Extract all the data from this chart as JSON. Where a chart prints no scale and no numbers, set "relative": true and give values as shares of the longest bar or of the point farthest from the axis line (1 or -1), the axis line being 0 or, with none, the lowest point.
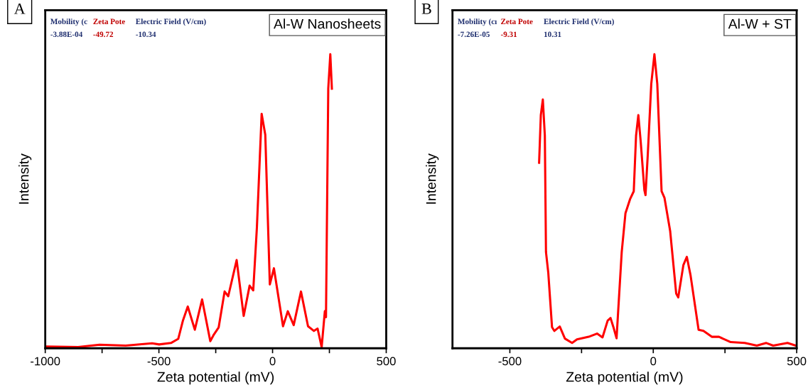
{
  "chart_data": [
    {
      "type": "line",
      "title": "Al-W Nanosheets",
      "xlabel": "Zeta potential (mV)",
      "ylabel": "Intensity",
      "relative": true,
      "grid": false,
      "xlim": [
        -1000,
        500
      ],
      "xticks": [
        -1000,
        {
          "value": -750,
          "label": null
        },
        -500,
        {
          "value": -250,
          "label": null
        },
        0,
        {
          "value": 250,
          "label": null
        },
        500
      ],
      "annotations": [
        "A",
        "Mobility (c",
        "Zeta Pote",
        "Electric Field (V/cm)",
        "-3.88E-04",
        "-49.72",
        "-10.34"
      ],
      "series": [
        {
          "color": "#ff0000",
          "x": [
            -1000,
            -855,
            -761,
            -646,
            -530,
            -499,
            -447,
            -415,
            -394,
            -373,
            -342,
            -310,
            -274,
            -258,
            -237,
            -211,
            -195,
            -158,
            -127,
            -101,
            -85,
            -69,
            -48,
            -32,
            -12,
            6,
            46,
            67,
            93,
            125,
            156,
            182,
            198,
            216,
            230,
            235,
            245,
            254,
            261
          ],
          "values": [
            0.006,
            0.004,
            0.012,
            0.009,
            0.017,
            0.013,
            0.018,
            0.032,
            0.095,
            0.142,
            0.063,
            0.166,
            0.024,
            0.047,
            0.071,
            0.193,
            0.177,
            0.3,
            0.11,
            0.213,
            0.197,
            0.41,
            0.797,
            0.726,
            0.217,
            0.272,
            0.075,
            0.126,
            0.079,
            0.193,
            0.075,
            0.059,
            0.067,
            0.004,
            0.126,
            0.106,
            0.883,
            1.0,
            0.883
          ]
        }
      ]
    },
    {
      "type": "line",
      "title": "Al-W + ST",
      "xlabel": "Zeta potential (mV)",
      "ylabel": "Intensity",
      "relative": true,
      "grid": false,
      "xlim": [
        -700,
        500
      ],
      "xticks": [
        -500,
        {
          "value": -250,
          "label": null
        },
        0,
        {
          "value": 250,
          "label": null
        },
        500
      ],
      "annotations": [
        "B",
        "Mobility (cı",
        "Zeta Pote",
        "Electric Field (V/cm)",
        "-7.26E-05",
        "-9.31",
        "10.31"
      ],
      "series": [
        {
          "color": "#ff0000",
          "x": [
            -398,
            -392,
            -385,
            -378,
            -374,
            -366,
            -353,
            -345,
            -326,
            -308,
            -283,
            -266,
            -225,
            -196,
            -177,
            -159,
            -149,
            -139,
            -128,
            -110,
            -97,
            -81,
            -68,
            -60,
            -52,
            -44,
            -31,
            -27,
            -19,
            -7,
            4,
            14,
            29,
            39,
            59,
            80,
            87,
            105,
            117,
            130,
            158,
            175,
            204,
            229,
            270,
            319,
            361,
            394,
            418,
            468,
            497
          ],
          "values": [
            0.631,
            0.793,
            0.846,
            0.723,
            0.327,
            0.257,
            0.072,
            0.059,
            0.074,
            0.033,
            0.018,
            0.03,
            0.039,
            0.05,
            0.037,
            0.094,
            0.103,
            0.072,
            0.034,
            0.327,
            0.459,
            0.507,
            0.534,
            0.723,
            0.793,
            0.705,
            0.538,
            0.521,
            0.661,
            0.899,
            1.0,
            0.899,
            0.534,
            0.512,
            0.398,
            0.186,
            0.173,
            0.283,
            0.311,
            0.248,
            0.063,
            0.059,
            0.039,
            0.039,
            0.021,
            0.018,
            0.009,
            0.018,
            0.009,
            0.018,
            0.009
          ]
        }
      ]
    }
  ]
}
